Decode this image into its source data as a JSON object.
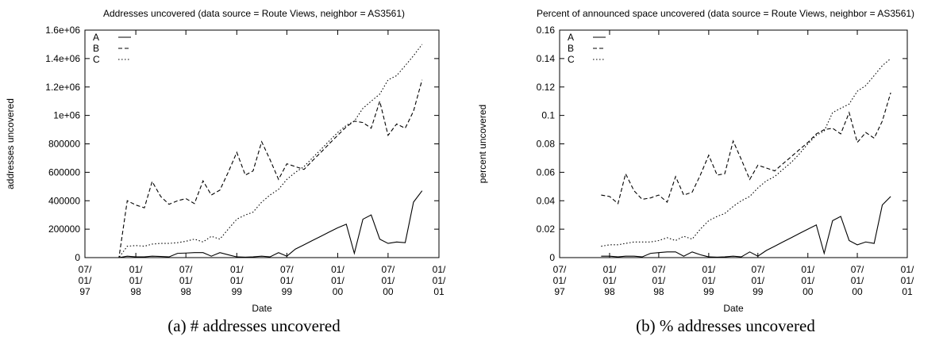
{
  "chart_data": [
    {
      "type": "line",
      "title": "Addresses uncovered (data source = Route Views, neighbor = AS3561)",
      "x_label": "Date",
      "y_label": "addresses uncovered",
      "caption": "(a) # addresses uncovered",
      "legend": "top-left",
      "grid": false,
      "x": [
        "1997-07-01",
        "1997-11-01",
        "1997-12-01",
        "1998-01-01",
        "1998-02-01",
        "1998-03-01",
        "1998-04-01",
        "1998-05-01",
        "1998-06-01",
        "1998-07-01",
        "1998-08-01",
        "1998-09-01",
        "1998-10-01",
        "1998-11-01",
        "1998-12-01",
        "1999-01-01",
        "1999-02-01",
        "1999-03-01",
        "1999-04-01",
        "1999-05-01",
        "1999-06-01",
        "1999-07-01",
        "1999-08-01",
        "1999-09-01",
        "1999-10-01",
        "1999-11-01",
        "1999-12-01",
        "2000-01-01",
        "2000-02-01",
        "2000-03-01",
        "2000-04-01",
        "2000-05-01",
        "2000-06-01",
        "2000-07-01",
        "2000-08-01",
        "2000-09-01",
        "2000-10-01",
        "2000-11-01"
      ],
      "series": [
        {
          "name": "A",
          "color": "#000000",
          "linestyle": "solid",
          "values": [
            0,
            0,
            10000,
            5000,
            5000,
            10000,
            8000,
            5000,
            30000,
            32000,
            35000,
            35000,
            10000,
            35000,
            20000,
            5000,
            3000,
            5000,
            10000,
            5000,
            35000,
            10000,
            60000,
            90000,
            120000,
            150000,
            180000,
            210000,
            235000,
            30000,
            270000,
            300000,
            130000,
            100000,
            110000,
            105000,
            390000,
            470000
          ]
        },
        {
          "name": "B",
          "color": "#000000",
          "linestyle": "dashed",
          "values": [
            0,
            0,
            400000,
            370000,
            350000,
            535000,
            430000,
            375000,
            400000,
            415000,
            380000,
            540000,
            440000,
            475000,
            600000,
            740000,
            580000,
            610000,
            815000,
            690000,
            550000,
            660000,
            640000,
            620000,
            680000,
            740000,
            800000,
            860000,
            920000,
            960000,
            950000,
            910000,
            1100000,
            860000,
            940000,
            910000,
            1030000,
            1250000
          ]
        },
        {
          "name": "C",
          "color": "#000000",
          "linestyle": "dotted",
          "values": [
            0,
            0,
            80000,
            85000,
            80000,
            95000,
            100000,
            100000,
            105000,
            115000,
            130000,
            110000,
            150000,
            130000,
            200000,
            270000,
            300000,
            320000,
            390000,
            440000,
            480000,
            550000,
            600000,
            640000,
            700000,
            760000,
            820000,
            880000,
            930000,
            960000,
            1050000,
            1100000,
            1150000,
            1250000,
            1280000,
            1350000,
            1420000,
            1500000
          ]
        }
      ],
      "xlim": [
        "1997-07-01",
        "2001-01-01"
      ],
      "xticks": [
        {
          "value": "1997-07-01",
          "label": "07/01/97"
        },
        {
          "value": "1998-01-01",
          "label": "01/01/98"
        },
        {
          "value": "1998-07-01",
          "label": "07/01/98"
        },
        {
          "value": "1999-01-01",
          "label": "01/01/99"
        },
        {
          "value": "1999-07-01",
          "label": "07/01/99"
        },
        {
          "value": "2000-01-01",
          "label": "01/01/00"
        },
        {
          "value": "2000-07-01",
          "label": "07/01/00"
        },
        {
          "value": "2001-01-01",
          "label": "01/01/01"
        }
      ],
      "ylim": [
        0,
        1600000
      ],
      "yticks": [
        0,
        200000,
        400000,
        600000,
        800000,
        {
          "value": 1000000,
          "label": "1e+06"
        },
        {
          "value": 1200000,
          "label": "1.2e+06"
        },
        {
          "value": 1400000,
          "label": "1.4e+06"
        },
        {
          "value": 1600000,
          "label": "1.6e+06"
        }
      ]
    },
    {
      "type": "line",
      "title": "Percent of announced space uncovered (data source = Route Views, neighbor = AS3561)",
      "x_label": "Date",
      "y_label": "percent uncovered",
      "caption": "(b) % addresses uncovered",
      "legend": "top-left",
      "grid": false,
      "x": [
        "1997-12-01",
        "1998-01-01",
        "1998-02-01",
        "1998-03-01",
        "1998-04-01",
        "1998-05-01",
        "1998-06-01",
        "1998-07-01",
        "1998-08-01",
        "1998-09-01",
        "1998-10-01",
        "1998-11-01",
        "1998-12-01",
        "1999-01-01",
        "1999-02-01",
        "1999-03-01",
        "1999-04-01",
        "1999-05-01",
        "1999-06-01",
        "1999-07-01",
        "1999-08-01",
        "1999-09-01",
        "1999-10-01",
        "1999-11-01",
        "1999-12-01",
        "2000-01-01",
        "2000-02-01",
        "2000-03-01",
        "2000-04-01",
        "2000-05-01",
        "2000-06-01",
        "2000-07-01",
        "2000-08-01",
        "2000-09-01",
        "2000-10-01",
        "2000-11-01"
      ],
      "series": [
        {
          "name": "A",
          "color": "#000000",
          "linestyle": "solid",
          "values": [
            0.001,
            0.001,
            0.0005,
            0.001,
            0.001,
            0.0005,
            0.003,
            0.0035,
            0.004,
            0.004,
            0.001,
            0.004,
            0.002,
            0.0005,
            0.0003,
            0.0005,
            0.001,
            0.0005,
            0.004,
            0.001,
            0.005,
            0.008,
            0.011,
            0.014,
            0.017,
            0.02,
            0.023,
            0.003,
            0.026,
            0.029,
            0.012,
            0.009,
            0.011,
            0.01,
            0.037,
            0.043
          ]
        },
        {
          "name": "B",
          "color": "#000000",
          "linestyle": "dashed",
          "values": [
            0.044,
            0.043,
            0.038,
            0.059,
            0.047,
            0.041,
            0.042,
            0.044,
            0.039,
            0.057,
            0.044,
            0.046,
            0.058,
            0.072,
            0.058,
            0.059,
            0.082,
            0.069,
            0.055,
            0.065,
            0.063,
            0.061,
            0.066,
            0.071,
            0.076,
            0.081,
            0.087,
            0.09,
            0.091,
            0.087,
            0.102,
            0.081,
            0.088,
            0.084,
            0.096,
            0.116
          ]
        },
        {
          "name": "C",
          "color": "#000000",
          "linestyle": "dotted",
          "values": [
            0.008,
            0.009,
            0.009,
            0.01,
            0.011,
            0.011,
            0.011,
            0.012,
            0.014,
            0.012,
            0.015,
            0.013,
            0.02,
            0.026,
            0.029,
            0.031,
            0.036,
            0.04,
            0.043,
            0.049,
            0.054,
            0.057,
            0.062,
            0.067,
            0.073,
            0.08,
            0.086,
            0.089,
            0.102,
            0.105,
            0.108,
            0.117,
            0.121,
            0.128,
            0.135,
            0.14
          ]
        }
      ],
      "xlim": [
        "1997-07-01",
        "2001-01-01"
      ],
      "xticks": [
        {
          "value": "1997-07-01",
          "label": "07/01/97"
        },
        {
          "value": "1998-01-01",
          "label": "01/01/98"
        },
        {
          "value": "1998-07-01",
          "label": "07/01/98"
        },
        {
          "value": "1999-01-01",
          "label": "01/01/99"
        },
        {
          "value": "1999-07-01",
          "label": "07/01/99"
        },
        {
          "value": "2000-01-01",
          "label": "01/01/00"
        },
        {
          "value": "2000-07-01",
          "label": "07/01/00"
        },
        {
          "value": "2001-01-01",
          "label": "01/01/01"
        }
      ],
      "ylim": [
        0,
        0.16
      ],
      "yticks": [
        0,
        0.02,
        0.04,
        0.06,
        0.08,
        0.1,
        0.12,
        0.14,
        0.16
      ]
    }
  ]
}
